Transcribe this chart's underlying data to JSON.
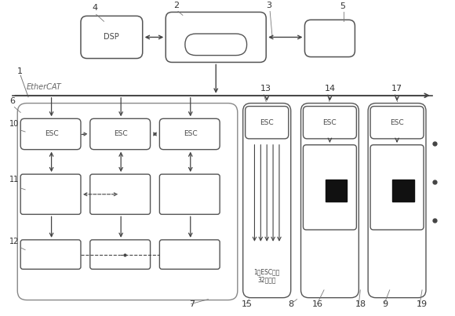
{
  "bg_color": "#ffffff",
  "line_color": "#444444",
  "box_color": "#ffffff",
  "box_edge": "#555555",
  "dark_box": "#111111",
  "dsp_label": "DSP",
  "esc_label": "ESC",
  "signal_label": "1个ESC最多\n32路信号",
  "ethercat_label": "EtherCAT"
}
